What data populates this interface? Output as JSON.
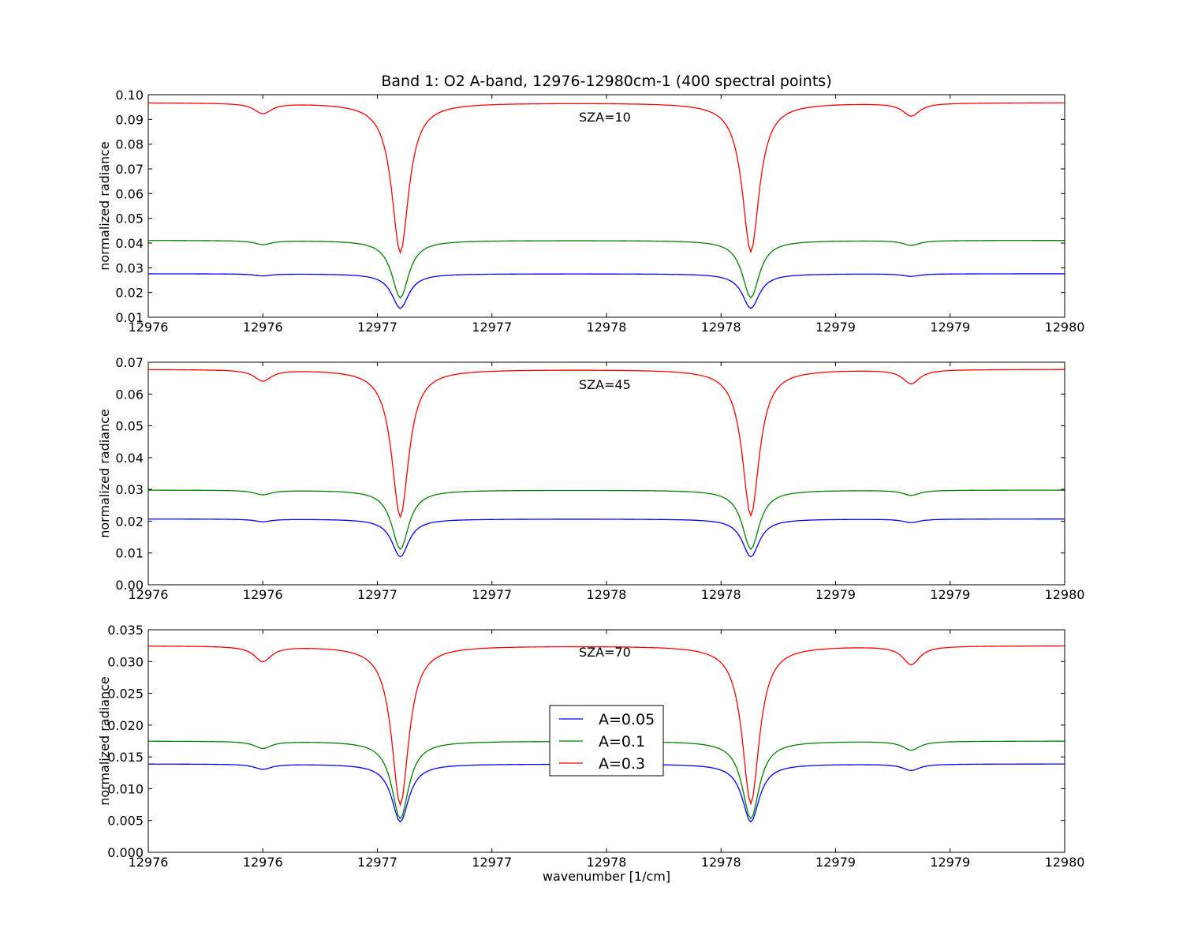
{
  "figure": {
    "title": "Band 1: O2 A-band, 12976-12980cm-1 (400 spectral points)"
  },
  "chart_data": [
    {
      "type": "line",
      "annotation": "SZA=10",
      "ylabel": "normalized radiance",
      "xlabel": "",
      "xlim": [
        12976,
        12980
      ],
      "ylim": [
        0.01,
        0.1
      ],
      "xtick_values": [
        12976,
        12976.5,
        12977,
        12977.5,
        12978,
        12978.5,
        12979,
        12979.5,
        12980
      ],
      "xtick_labels": [
        "12976",
        "12976",
        "12977",
        "12977",
        "12978",
        "12978",
        "12979",
        "12979",
        "12980"
      ],
      "ytick_values": [
        0.01,
        0.02,
        0.03,
        0.04,
        0.05,
        0.06,
        0.07,
        0.08,
        0.09,
        0.1
      ],
      "ytick_labels": [
        "0.01",
        "0.02",
        "0.03",
        "0.04",
        "0.05",
        "0.06",
        "0.07",
        "0.08",
        "0.09",
        "0.10"
      ],
      "grid": false,
      "series": [
        {
          "name": "A=0.05",
          "color": "#0000ff",
          "baseline": 0.0276,
          "dips": [
            {
              "x": 12976.5,
              "min": 0.0268
            },
            {
              "x": 12977.1,
              "min": 0.0136
            },
            {
              "x": 12978.63,
              "min": 0.0136
            },
            {
              "x": 12979.33,
              "min": 0.0266
            }
          ]
        },
        {
          "name": "A=0.1",
          "color": "#008000",
          "baseline": 0.0411,
          "dips": [
            {
              "x": 12976.5,
              "min": 0.0395
            },
            {
              "x": 12977.1,
              "min": 0.0179
            },
            {
              "x": 12978.63,
              "min": 0.0179
            },
            {
              "x": 12979.33,
              "min": 0.0392
            }
          ]
        },
        {
          "name": "A=0.3",
          "color": "#ff0000",
          "baseline": 0.0968,
          "dips": [
            {
              "x": 12976.5,
              "min": 0.0926
            },
            {
              "x": 12977.1,
              "min": 0.0362
            },
            {
              "x": 12978.63,
              "min": 0.0365
            },
            {
              "x": 12979.33,
              "min": 0.0916
            }
          ]
        }
      ]
    },
    {
      "type": "line",
      "annotation": "SZA=45",
      "ylabel": "normalized radiance",
      "xlabel": "",
      "xlim": [
        12976,
        12980
      ],
      "ylim": [
        0.0,
        0.07
      ],
      "xtick_values": [
        12976,
        12976.5,
        12977,
        12977.5,
        12978,
        12978.5,
        12979,
        12979.5,
        12980
      ],
      "xtick_labels": [
        "12976",
        "12976",
        "12977",
        "12977",
        "12978",
        "12978",
        "12979",
        "12979",
        "12980"
      ],
      "ytick_values": [
        0.0,
        0.01,
        0.02,
        0.03,
        0.04,
        0.05,
        0.06,
        0.07
      ],
      "ytick_labels": [
        "0.00",
        "0.01",
        "0.02",
        "0.03",
        "0.04",
        "0.05",
        "0.06",
        "0.07"
      ],
      "grid": false,
      "series": [
        {
          "name": "A=0.05",
          "color": "#0000ff",
          "baseline": 0.0207,
          "dips": [
            {
              "x": 12976.5,
              "min": 0.0199
            },
            {
              "x": 12977.1,
              "min": 0.0088
            },
            {
              "x": 12978.63,
              "min": 0.0088
            },
            {
              "x": 12979.33,
              "min": 0.0196
            }
          ]
        },
        {
          "name": "A=0.1",
          "color": "#008000",
          "baseline": 0.0298,
          "dips": [
            {
              "x": 12976.5,
              "min": 0.0284
            },
            {
              "x": 12977.1,
              "min": 0.0112
            },
            {
              "x": 12978.63,
              "min": 0.0112
            },
            {
              "x": 12979.33,
              "min": 0.0282
            }
          ]
        },
        {
          "name": "A=0.3",
          "color": "#ff0000",
          "baseline": 0.0678,
          "dips": [
            {
              "x": 12976.5,
              "min": 0.0643
            },
            {
              "x": 12977.1,
              "min": 0.0214
            },
            {
              "x": 12978.63,
              "min": 0.0218
            },
            {
              "x": 12979.33,
              "min": 0.0634
            }
          ]
        }
      ]
    },
    {
      "type": "line",
      "annotation": "SZA=70",
      "ylabel": "normalized radiance",
      "xlabel": "wavenumber [1/cm]",
      "xlim": [
        12976,
        12980
      ],
      "ylim": [
        0.0,
        0.035
      ],
      "xtick_values": [
        12976,
        12976.5,
        12977,
        12977.5,
        12978,
        12978.5,
        12979,
        12979.5,
        12980
      ],
      "xtick_labels": [
        "12976",
        "12976",
        "12977",
        "12977",
        "12978",
        "12978",
        "12979",
        "12979",
        "12980"
      ],
      "ytick_values": [
        0.0,
        0.005,
        0.01,
        0.015,
        0.02,
        0.025,
        0.03,
        0.035
      ],
      "ytick_labels": [
        "0.000",
        "0.005",
        "0.010",
        "0.015",
        "0.020",
        "0.025",
        "0.030",
        "0.035"
      ],
      "grid": false,
      "legend": {
        "placement": "center",
        "entries": [
          "A=0.05",
          "A=0.1",
          "A=0.3"
        ]
      },
      "series": [
        {
          "name": "A=0.05",
          "color": "#0000ff",
          "baseline": 0.0139,
          "dips": [
            {
              "x": 12976.5,
              "min": 0.0131
            },
            {
              "x": 12977.1,
              "min": 0.0048
            },
            {
              "x": 12978.63,
              "min": 0.0048
            },
            {
              "x": 12979.33,
              "min": 0.0129
            }
          ]
        },
        {
          "name": "A=0.1",
          "color": "#008000",
          "baseline": 0.0175,
          "dips": [
            {
              "x": 12976.5,
              "min": 0.0164
            },
            {
              "x": 12977.1,
              "min": 0.0053
            },
            {
              "x": 12978.63,
              "min": 0.0053
            },
            {
              "x": 12979.33,
              "min": 0.0161
            }
          ]
        },
        {
          "name": "A=0.3",
          "color": "#ff0000",
          "baseline": 0.0325,
          "dips": [
            {
              "x": 12976.5,
              "min": 0.0301
            },
            {
              "x": 12977.1,
              "min": 0.0075
            },
            {
              "x": 12978.63,
              "min": 0.0077
            },
            {
              "x": 12979.33,
              "min": 0.0296
            }
          ]
        }
      ]
    }
  ]
}
